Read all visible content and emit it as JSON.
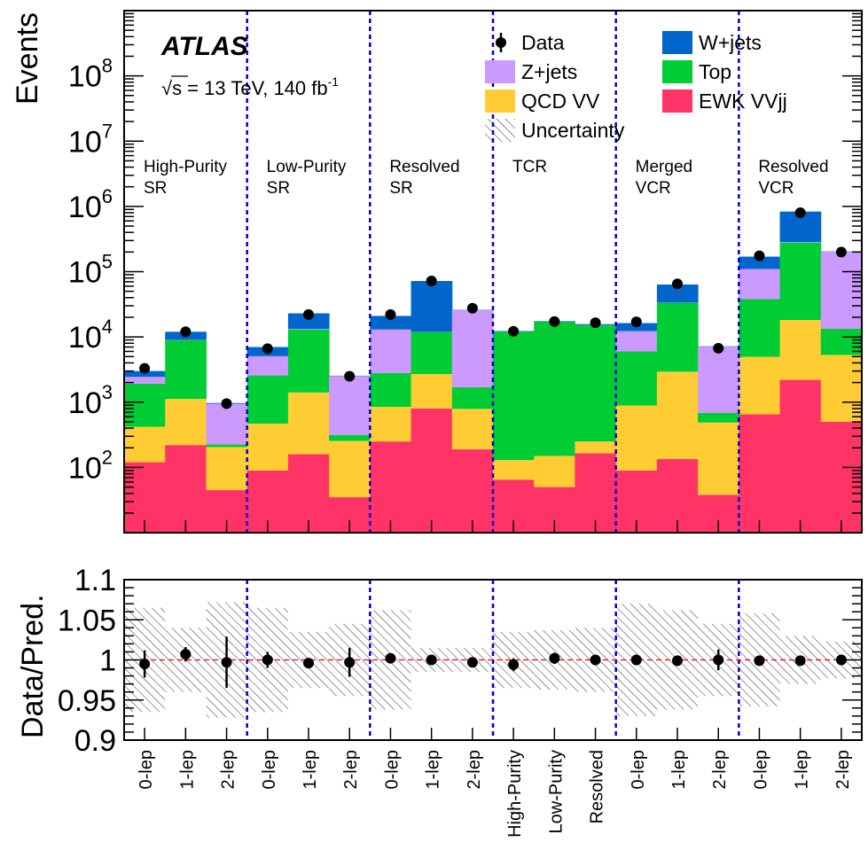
{
  "chart_data": {
    "type": "bar",
    "stacked": true,
    "log_y": true,
    "experiment_label": "ATLAS",
    "energy_label_prefix": "√s = 13 TeV, 140 fb",
    "energy_label_sup": "-1",
    "ylabel": "Events",
    "ratio_ylabel": "Data/Pred.",
    "ylim": [
      10,
      1000000000
    ],
    "ratio_ylim": [
      0.9,
      1.1
    ],
    "y_tick_labels": [
      {
        "base": "10",
        "exp": "2",
        "value": 100
      },
      {
        "base": "10",
        "exp": "3",
        "value": 1000
      },
      {
        "base": "10",
        "exp": "4",
        "value": 10000
      },
      {
        "base": "10",
        "exp": "5",
        "value": 100000
      },
      {
        "base": "10",
        "exp": "6",
        "value": 1000000
      },
      {
        "base": "10",
        "exp": "7",
        "value": 10000000
      },
      {
        "base": "10",
        "exp": "8",
        "value": 100000000
      }
    ],
    "ratio_tick_labels": [
      {
        "label": "1.1",
        "value": 1.1
      },
      {
        "label": "1.05",
        "value": 1.05
      },
      {
        "label": "1",
        "value": 1.0
      },
      {
        "label": "0.95",
        "value": 0.95
      },
      {
        "label": "0.9",
        "value": 0.9
      }
    ],
    "regions": [
      {
        "line1": "High-Purity",
        "line2": "SR"
      },
      {
        "line1": "Low-Purity",
        "line2": "SR"
      },
      {
        "line1": "Resolved",
        "line2": "SR"
      },
      {
        "line1": "TCR",
        "line2": ""
      },
      {
        "line1": "Merged",
        "line2": "VCR"
      },
      {
        "line1": "Resolved",
        "line2": "VCR"
      }
    ],
    "categories": [
      "0-lep",
      "1-lep",
      "2-lep",
      "0-lep",
      "1-lep",
      "2-lep",
      "0-lep",
      "1-lep",
      "2-lep",
      "High-Purity",
      "Low-Purity",
      "Resolved",
      "0-lep",
      "1-lep",
      "2-lep",
      "0-lep",
      "1-lep",
      "2-lep"
    ],
    "series": [
      {
        "name": "EWK VVjj",
        "color": "#ff3366",
        "values": [
          120,
          220,
          45,
          90,
          160,
          35,
          250,
          800,
          190,
          65,
          50,
          165,
          90,
          135,
          38,
          650,
          2200,
          500
        ]
      },
      {
        "name": "QCD VV",
        "color": "#ffcc33",
        "values": [
          300,
          900,
          160,
          380,
          1250,
          220,
          600,
          1900,
          600,
          65,
          100,
          85,
          800,
          2800,
          450,
          4300,
          16000,
          4800
        ]
      },
      {
        "name": "Top",
        "color": "#00cc33",
        "values": [
          1500,
          7800,
          20,
          2100,
          11500,
          60,
          1950,
          9200,
          900,
          12000,
          17000,
          14800,
          5100,
          30400,
          200,
          33000,
          260000,
          8000
        ]
      },
      {
        "name": "Z+jets",
        "color": "#cc99ff",
        "values": [
          520,
          80,
          720,
          2500,
          300,
          2200,
          10200,
          50,
          24000,
          120,
          150,
          70,
          6300,
          200,
          6400,
          72000,
          5000,
          190000
        ]
      },
      {
        "name": "W+jets",
        "color": "#0066cc",
        "values": [
          560,
          3000,
          25,
          1930,
          9800,
          30,
          8000,
          60000,
          300,
          150,
          250,
          580,
          4000,
          30000,
          100,
          60000,
          550000,
          2000
        ]
      }
    ],
    "data": {
      "name": "Data",
      "values": [
        3300,
        12000,
        950,
        6600,
        22000,
        2500,
        22000,
        72000,
        27500,
        12200,
        17200,
        16500,
        17000,
        65000,
        6700,
        175000,
        800000,
        200000
      ],
      "ratio": [
        0.995,
        1.007,
        0.997,
        1.0,
        0.996,
        0.997,
        1.002,
        1.0,
        0.997,
        0.994,
        1.002,
        1.0,
        1.0,
        0.999,
        1.0,
        0.999,
        0.999,
        1.0
      ],
      "ratio_err": [
        0.017,
        0.009,
        0.032,
        0.01,
        0.005,
        0.018,
        0.005,
        0.003,
        0.006,
        0.008,
        0.007,
        0.004,
        0.006,
        0.003,
        0.013,
        0.003,
        0.002,
        0.003
      ]
    },
    "uncertainty": {
      "name": "Uncertainty",
      "ratio_band": [
        0.065,
        0.04,
        0.072,
        0.065,
        0.035,
        0.045,
        0.062,
        0.015,
        0.015,
        0.035,
        0.037,
        0.04,
        0.07,
        0.062,
        0.045,
        0.058,
        0.03,
        0.023
      ]
    },
    "legend": {
      "placement": "top-right",
      "entries": [
        {
          "label": "Data",
          "kind": "data"
        },
        {
          "label": "W+jets",
          "kind": "fill",
          "color": "#0066cc"
        },
        {
          "label": "Z+jets",
          "kind": "fill",
          "color": "#cc99ff"
        },
        {
          "label": "Top",
          "kind": "fill",
          "color": "#00cc33"
        },
        {
          "label": "QCD VV",
          "kind": "fill",
          "color": "#ffcc33"
        },
        {
          "label": "EWK VVjj",
          "kind": "fill",
          "color": "#ff3366"
        },
        {
          "label": "Uncertainty",
          "kind": "hatch"
        }
      ]
    },
    "grid": false,
    "region_separator_color": "#0000cc",
    "ratio_reference_color": "#ff0000"
  }
}
